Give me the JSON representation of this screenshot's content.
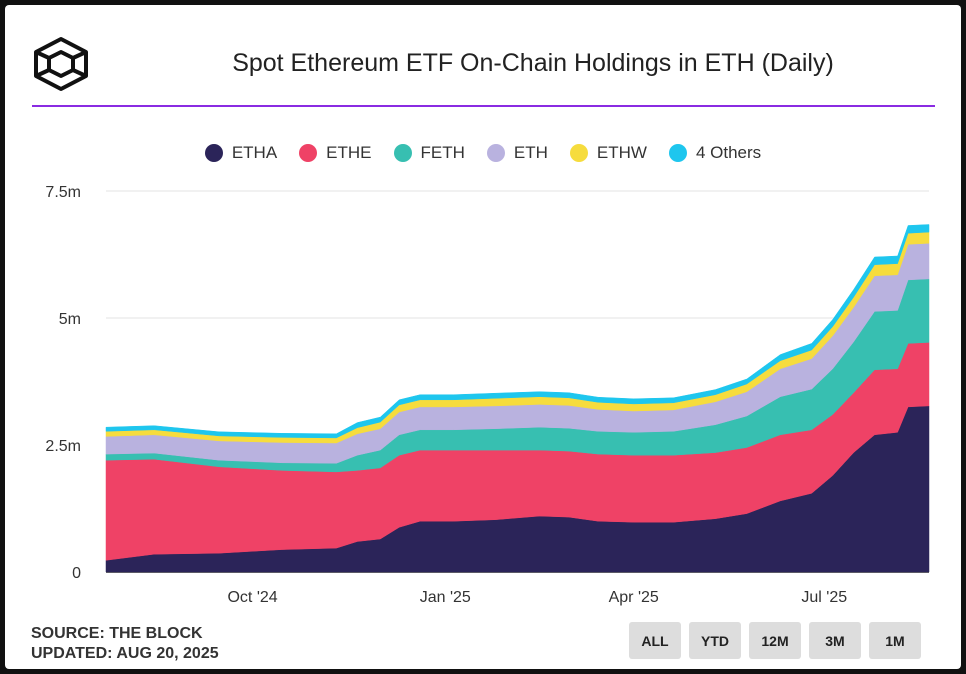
{
  "header": {
    "title": "Spot Ethereum ETF On-Chain Holdings in ETH (Daily)"
  },
  "footer": {
    "source": "SOURCE: THE BLOCK",
    "updated": "UPDATED: AUG 20, 2025"
  },
  "range_buttons": [
    "ALL",
    "YTD",
    "12M",
    "3M",
    "1M"
  ],
  "chart_data": {
    "type": "area",
    "stacked": true,
    "title": "Spot Ethereum ETF On-Chain Holdings in ETH (Daily)",
    "x_ticks": [
      {
        "label": "Oct '24",
        "date": "2024-10-01"
      },
      {
        "label": "Jan '25",
        "date": "2025-01-01"
      },
      {
        "label": "Apr '25",
        "date": "2025-04-01"
      },
      {
        "label": "Jul '25",
        "date": "2025-07-01"
      }
    ],
    "y_ticks": [
      {
        "label": "0",
        "value": 0
      },
      {
        "label": "2.5m",
        "value": 2500000
      },
      {
        "label": "5m",
        "value": 5000000
      },
      {
        "label": "7.5m",
        "value": 7500000
      }
    ],
    "ylim": [
      0,
      7500000
    ],
    "xlim": [
      "2024-07-23",
      "2025-08-20"
    ],
    "grid": "horizontal",
    "legend_position": "top",
    "x": [
      "2024-07-23",
      "2024-08-15",
      "2024-09-15",
      "2024-10-15",
      "2024-11-10",
      "2024-11-20",
      "2024-12-01",
      "2024-12-10",
      "2024-12-20",
      "2025-01-05",
      "2025-01-25",
      "2025-02-15",
      "2025-03-01",
      "2025-03-15",
      "2025-04-01",
      "2025-04-20",
      "2025-05-10",
      "2025-05-25",
      "2025-06-10",
      "2025-06-25",
      "2025-07-05",
      "2025-07-15",
      "2025-07-25",
      "2025-08-05",
      "2025-08-10",
      "2025-08-20"
    ],
    "series": [
      {
        "name": "ETHA",
        "color": "#2b2459",
        "values": [
          0.23,
          0.35,
          0.37,
          0.44,
          0.47,
          0.6,
          0.65,
          0.88,
          1.0,
          1.0,
          1.03,
          1.1,
          1.08,
          1.0,
          0.98,
          0.98,
          1.05,
          1.15,
          1.4,
          1.55,
          1.9,
          2.35,
          2.7,
          2.75,
          3.25,
          3.27
        ]
      },
      {
        "name": "ETHE",
        "color": "#ef4266",
        "values": [
          1.97,
          1.87,
          1.7,
          1.56,
          1.5,
          1.4,
          1.4,
          1.42,
          1.4,
          1.4,
          1.37,
          1.3,
          1.3,
          1.32,
          1.32,
          1.32,
          1.3,
          1.3,
          1.3,
          1.25,
          1.2,
          1.18,
          1.28,
          1.25,
          1.25,
          1.25
        ]
      },
      {
        "name": "FETH",
        "color": "#37bfb1",
        "values": [
          0.12,
          0.12,
          0.13,
          0.15,
          0.17,
          0.3,
          0.35,
          0.4,
          0.4,
          0.4,
          0.42,
          0.45,
          0.45,
          0.45,
          0.45,
          0.47,
          0.55,
          0.62,
          0.75,
          0.8,
          0.9,
          1.0,
          1.15,
          1.15,
          1.25,
          1.25
        ]
      },
      {
        "name": "ETH",
        "color": "#b9b2df",
        "values": [
          0.35,
          0.36,
          0.38,
          0.4,
          0.4,
          0.42,
          0.42,
          0.45,
          0.45,
          0.45,
          0.45,
          0.45,
          0.45,
          0.43,
          0.42,
          0.42,
          0.45,
          0.48,
          0.55,
          0.6,
          0.65,
          0.68,
          0.7,
          0.7,
          0.7,
          0.7
        ]
      },
      {
        "name": "ETHW",
        "color": "#f6dc3d",
        "values": [
          0.1,
          0.1,
          0.1,
          0.1,
          0.1,
          0.12,
          0.13,
          0.14,
          0.14,
          0.14,
          0.15,
          0.15,
          0.15,
          0.14,
          0.14,
          0.14,
          0.14,
          0.15,
          0.16,
          0.17,
          0.18,
          0.2,
          0.22,
          0.22,
          0.22,
          0.22
        ]
      },
      {
        "name": "4 Others",
        "color": "#1ec6ee",
        "values": [
          0.08,
          0.08,
          0.08,
          0.08,
          0.08,
          0.1,
          0.1,
          0.1,
          0.1,
          0.1,
          0.1,
          0.1,
          0.1,
          0.1,
          0.1,
          0.1,
          0.1,
          0.1,
          0.12,
          0.13,
          0.14,
          0.15,
          0.15,
          0.15,
          0.15,
          0.15
        ]
      }
    ],
    "values_unit": "million ETH"
  }
}
